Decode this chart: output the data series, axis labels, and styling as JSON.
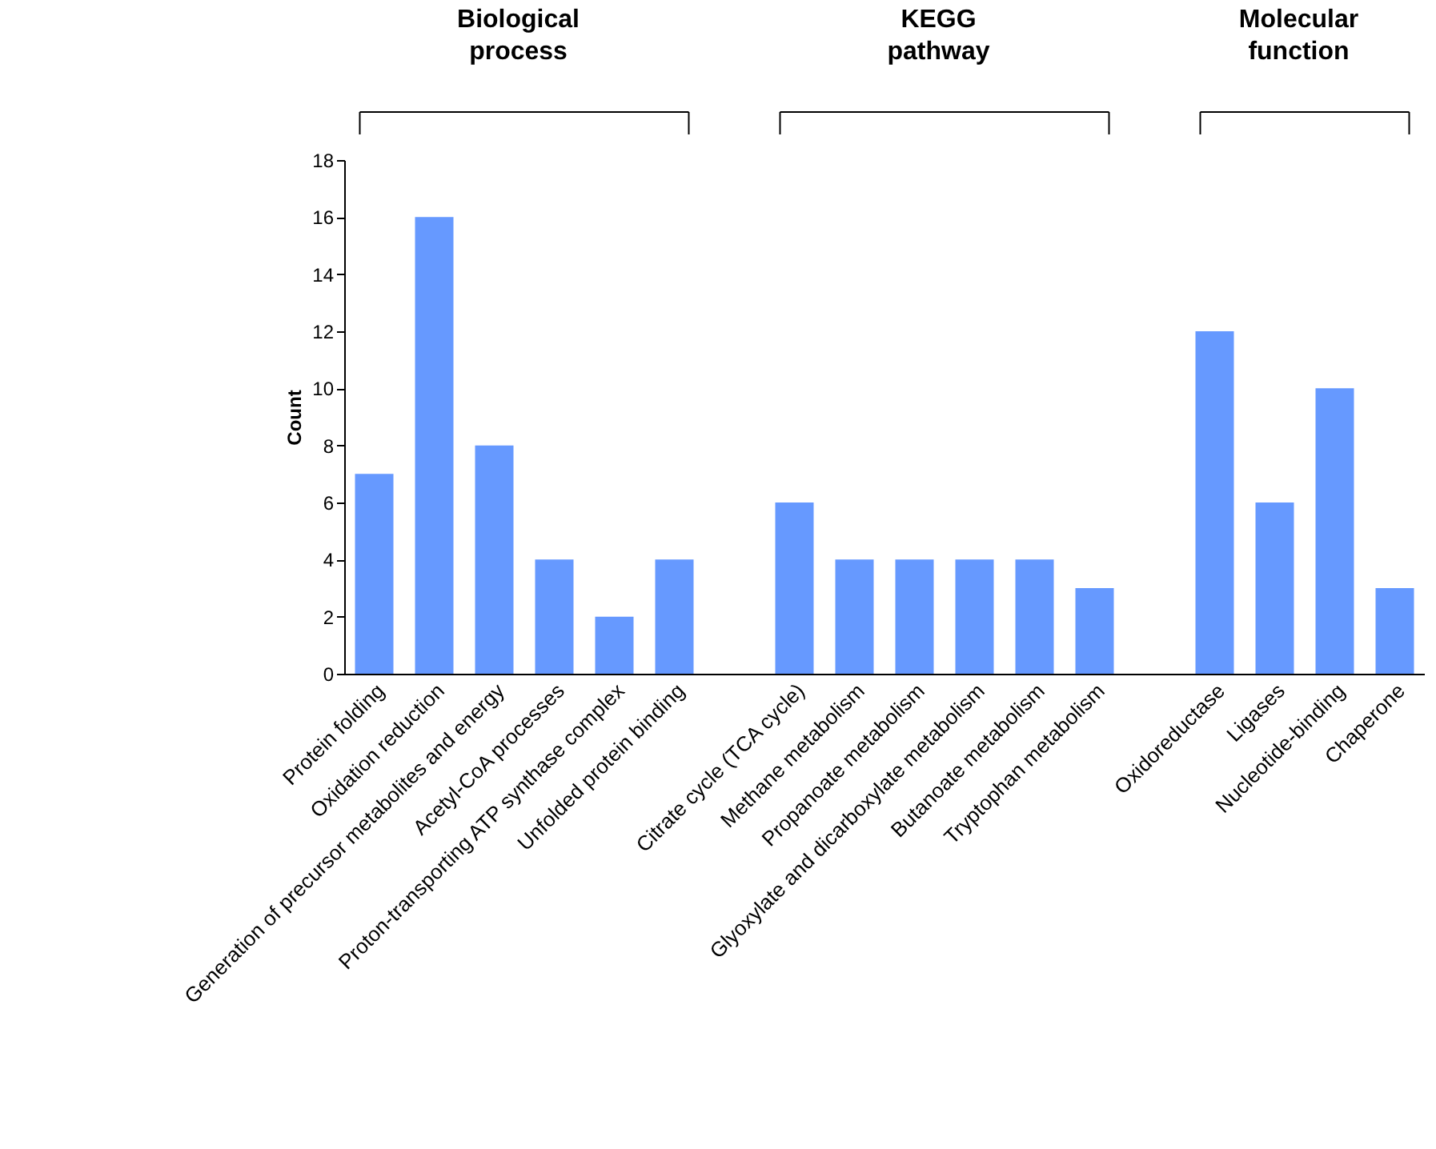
{
  "chart_data": {
    "type": "bar",
    "ylabel": "Count",
    "annotations": [
      "Biological process",
      "KEGG pathway",
      "Molecular function"
    ],
    "categories": [
      "Protein folding",
      "Oxidation reduction",
      "Generation of precursor metabolites and energy",
      "Acetyl-CoA processes",
      "Proton-transporting ATP synthase complex",
      "Unfolded protein binding",
      null,
      "Citrate cycle (TCA cycle)",
      "Methane metabolism",
      "Propanoate metabolism",
      "Glyoxylate and dicarboxylate metabolism",
      "Butanoate metabolism",
      "Tryptophan metabolism",
      null,
      "Oxidoreductase",
      "Ligases",
      "Nucleotide-binding",
      "Chaperone"
    ],
    "values": [
      7,
      16,
      8,
      4,
      2,
      4,
      null,
      6,
      4,
      4,
      4,
      4,
      3,
      null,
      12,
      6,
      10,
      3
    ],
    "color": "#6699ff",
    "ylim": [
      0,
      18
    ],
    "yticks": [
      0,
      2,
      4,
      6,
      8,
      10,
      12,
      14,
      16,
      18
    ],
    "grid": false
  }
}
